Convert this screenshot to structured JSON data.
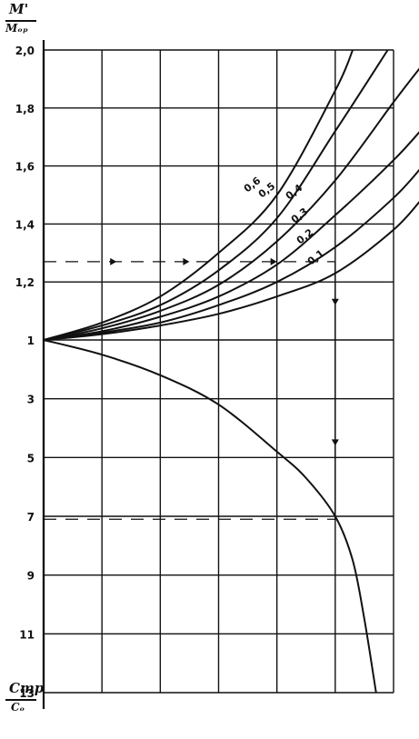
{
  "chart_data": {
    "type": "line",
    "title": "",
    "upper_panel": {
      "ylabel_numerator": "M'",
      "ylabel_denominator": "Mₒₚ",
      "ylim": [
        1,
        2.0
      ],
      "yticks": [
        "1",
        "1,2",
        "1,4",
        "1,6",
        "1,8",
        "2,0"
      ],
      "ytick_values": [
        1,
        1.2,
        1.4,
        1.6,
        1.8,
        2.0
      ],
      "x_gridlines": 5,
      "xlim": [
        0,
        6.5
      ],
      "series": [
        {
          "name": "0,6",
          "x": [
            0,
            1,
            2,
            3,
            4,
            5,
            5.3
          ],
          "y": [
            1,
            1.06,
            1.15,
            1.3,
            1.5,
            1.86,
            2.0
          ]
        },
        {
          "name": "0,5",
          "x": [
            0,
            1,
            2,
            3,
            4,
            5,
            5.9
          ],
          "y": [
            1,
            1.05,
            1.12,
            1.24,
            1.42,
            1.72,
            2.0
          ]
        },
        {
          "name": "0,4",
          "x": [
            0,
            1,
            2,
            3,
            4,
            5,
            6,
            6.5
          ],
          "y": [
            1,
            1.04,
            1.1,
            1.19,
            1.34,
            1.55,
            1.82,
            1.95
          ]
        },
        {
          "name": "0,3",
          "x": [
            0,
            1,
            2,
            3,
            4,
            5,
            6,
            6.5
          ],
          "y": [
            1,
            1.03,
            1.08,
            1.15,
            1.26,
            1.43,
            1.62,
            1.73
          ]
        },
        {
          "name": "0,2",
          "x": [
            0,
            1,
            2,
            3,
            4,
            5,
            6,
            6.5
          ],
          "y": [
            1,
            1.025,
            1.06,
            1.12,
            1.2,
            1.32,
            1.49,
            1.6
          ]
        },
        {
          "name": "0,1",
          "x": [
            0,
            1,
            2,
            3,
            4,
            5,
            6,
            6.5
          ],
          "y": [
            1,
            1.02,
            1.05,
            1.09,
            1.15,
            1.23,
            1.38,
            1.49
          ]
        }
      ],
      "guide_y": 1.27
    },
    "lower_panel": {
      "ylabel_numerator": "Cтр",
      "ylabel_denominator": "Cₒ",
      "ylim": [
        1,
        13
      ],
      "yticks": [
        "1",
        "3",
        "5",
        "7",
        "9",
        "11",
        "13"
      ],
      "ytick_values": [
        1,
        3,
        5,
        7,
        9,
        11,
        13
      ],
      "series": [
        {
          "name": "",
          "x": [
            0,
            1,
            2,
            3,
            4,
            4.5,
            5,
            5.3,
            5.5,
            5.7
          ],
          "y": [
            1,
            1.5,
            2.2,
            3.2,
            4.8,
            5.7,
            7,
            8.5,
            10.5,
            13
          ]
        }
      ],
      "guide_y": 7.1
    },
    "guide_x": 5,
    "grid": true,
    "legend": "labels on curves"
  }
}
